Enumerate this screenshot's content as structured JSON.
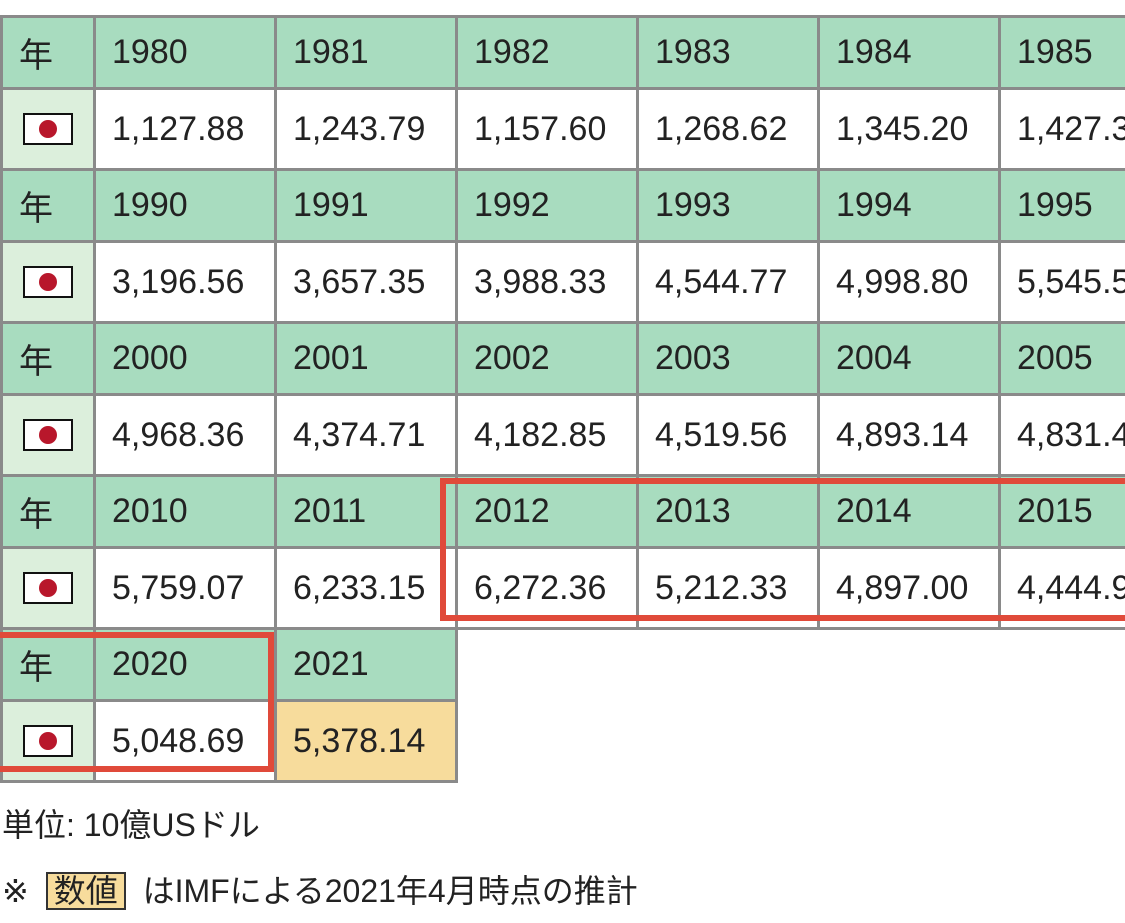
{
  "table": {
    "blocks": [
      {
        "year_label": "年",
        "years": [
          "1980",
          "1981",
          "1982",
          "1983",
          "1984",
          "1985"
        ],
        "values": [
          "1,127.88",
          "1,243.79",
          "1,157.60",
          "1,268.62",
          "1,345.20",
          "1,427.3"
        ]
      },
      {
        "year_label": "年",
        "years": [
          "1990",
          "1991",
          "1992",
          "1993",
          "1994",
          "1995"
        ],
        "values": [
          "3,196.56",
          "3,657.35",
          "3,988.33",
          "4,544.77",
          "4,998.80",
          "5,545.5"
        ]
      },
      {
        "year_label": "年",
        "years": [
          "2000",
          "2001",
          "2002",
          "2003",
          "2004",
          "2005"
        ],
        "values": [
          "4,968.36",
          "4,374.71",
          "4,182.85",
          "4,519.56",
          "4,893.14",
          "4,831.4"
        ]
      },
      {
        "year_label": "年",
        "years": [
          "2010",
          "2011",
          "2012",
          "2013",
          "2014",
          "2015"
        ],
        "values": [
          "5,759.07",
          "6,233.15",
          "6,272.36",
          "5,212.33",
          "4,897.00",
          "4,444.9"
        ]
      },
      {
        "year_label": "年",
        "years": [
          "2020",
          "2021"
        ],
        "values": [
          "5,048.69",
          "5,378.14"
        ],
        "estimated": [
          false,
          true
        ]
      }
    ]
  },
  "unit_note": "単位: 10億USドル",
  "footnote": {
    "prefix": "※",
    "legend_label": "数値",
    "text": "はIMFによる2021年4月時点の推計"
  }
}
